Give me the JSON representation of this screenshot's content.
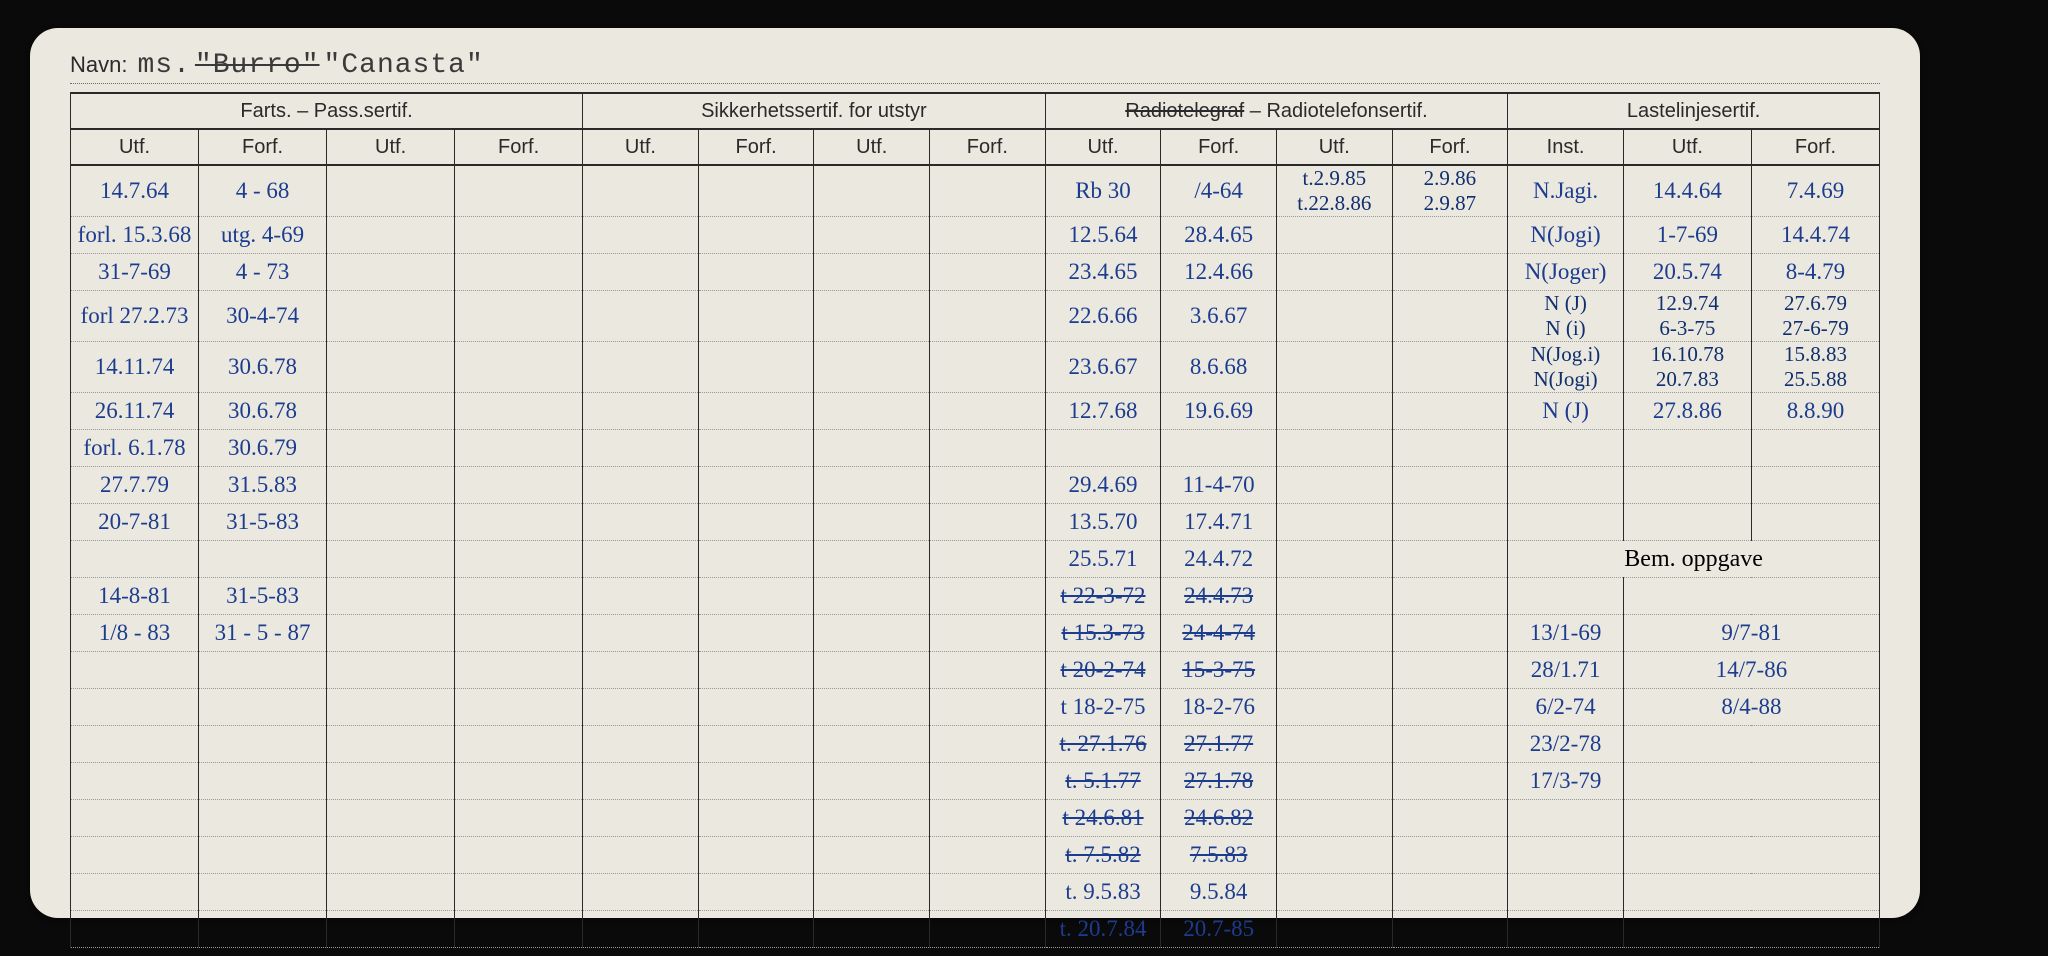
{
  "page": {
    "bg_color": "#0a0a0a",
    "card_color": "#ebe8df",
    "ink_color": "#1b3c8f",
    "print_color": "#2a2a2a"
  },
  "name": {
    "label": "Navn:",
    "prefix": "ms.",
    "struck": "\"Burro\"",
    "current": "\"Canasta\""
  },
  "headers": {
    "g1": {
      "farts": "Farts. – Pass.sertif.",
      "sikker": "Sikkerhetssertif. for utstyr",
      "radio_struck": "Radiotelegraf",
      "radio": " – Radiotelefonsertif.",
      "laste": "Lastelinjesertif."
    },
    "g2": {
      "utf": "Utf.",
      "forf": "Forf.",
      "inst": "Inst."
    },
    "bem": "Bem. oppgave"
  },
  "rows": [
    {
      "f_utf": "14.7.64",
      "f_forf": "4 - 68",
      "r_utf": "Rb 30",
      "r_forf": "/4-64",
      "r_utf2_a": "t.2.9.85",
      "r_forf2_a": "2.9.86",
      "r_utf2_b": "t.22.8.86",
      "r_forf2_b": "2.9.87",
      "l_inst": "N.Jagi.",
      "l_utf": "14.4.64",
      "l_forf": "7.4.69"
    },
    {
      "f_utf": "forl. 15.3.68",
      "f_forf": "utg. 4-69",
      "r_utf": "12.5.64",
      "r_forf": "28.4.65",
      "l_inst": "N(Jogi)",
      "l_utf": "1-7-69",
      "l_forf": "14.4.74"
    },
    {
      "f_utf": "31-7-69",
      "f_forf": "4 - 73",
      "r_utf": "23.4.65",
      "r_forf": "12.4.66",
      "l_inst": "N(Joger)",
      "l_utf": "20.5.74",
      "l_forf": "8-4.79"
    },
    {
      "f_utf": "forl 27.2.73",
      "f_forf": "30-4-74",
      "r_utf": "22.6.66",
      "r_forf": "3.6.67",
      "l_inst": "N (J)",
      "l_utf": "12.9.74",
      "l_forf": "27.6.79",
      "extra": [
        [
          "N (i)",
          "6-3-75",
          "27-6-79"
        ]
      ]
    },
    {
      "f_utf": "14.11.74",
      "f_forf": "30.6.78",
      "r_utf": "23.6.67",
      "r_forf": "8.6.68",
      "l_inst": "N(Jog.i)",
      "l_utf": "16.10.78",
      "l_forf": "15.8.83",
      "extra": [
        [
          "N(Jogi)",
          "20.7.83",
          "25.5.88"
        ]
      ]
    },
    {
      "f_utf": "26.11.74",
      "f_forf": "30.6.78",
      "r_utf": "12.7.68",
      "r_forf": "19.6.69",
      "l_inst": "N (J)",
      "l_utf": "27.8.86",
      "l_forf": "8.8.90"
    },
    {
      "f_utf": "forl. 6.1.78",
      "f_forf": "30.6.79"
    },
    {
      "f_utf": "27.7.79",
      "f_forf": "31.5.83",
      "r_utf": "29.4.69",
      "r_forf": "11-4-70"
    },
    {
      "f_utf": "20-7-81",
      "f_forf": "31-5-83",
      "r_utf": "13.5.70",
      "r_forf": "17.4.71"
    },
    {
      "r_utf": "25.5.71",
      "r_forf": "24.4.72",
      "bem_header": true
    },
    {
      "f_utf": "14-8-81",
      "f_forf": "31-5-83",
      "r_utf": "t 22-3-72",
      "r_forf": "24.4.73",
      "r_strike": true
    },
    {
      "f_utf": "1/8 - 83",
      "f_forf": "31 - 5 - 87",
      "r_utf": "t 15.3-73",
      "r_forf": "24-4-74",
      "r_strike": true,
      "b1": "13/1-69",
      "b2": "9/7-81"
    },
    {
      "r_utf": "t 20-2-74",
      "r_forf": "15-3-75",
      "r_strike": true,
      "b1": "28/1.71",
      "b2": "14/7-86"
    },
    {
      "r_utf": "t 18-2-75",
      "r_forf": "18-2-76",
      "b1": "6/2-74",
      "b2": "8/4-88"
    },
    {
      "r_utf": "t. 27.1.76",
      "r_forf": "27.1.77",
      "r_strike": true,
      "b1": "23/2-78"
    },
    {
      "r_utf": "t. 5.1.77",
      "r_forf": "27.1.78",
      "r_strike": true,
      "b1": "17/3-79"
    },
    {
      "r_utf": "t 24.6.81",
      "r_forf": "24.6.82",
      "r_strike": true
    },
    {
      "r_utf": "t. 7.5.82",
      "r_forf": "7.5.83",
      "r_strike": true
    },
    {
      "r_utf": "t. 9.5.83",
      "r_forf": "9.5.84"
    },
    {
      "r_utf": "t. 20.7.84",
      "r_forf": "20.7-85"
    }
  ]
}
